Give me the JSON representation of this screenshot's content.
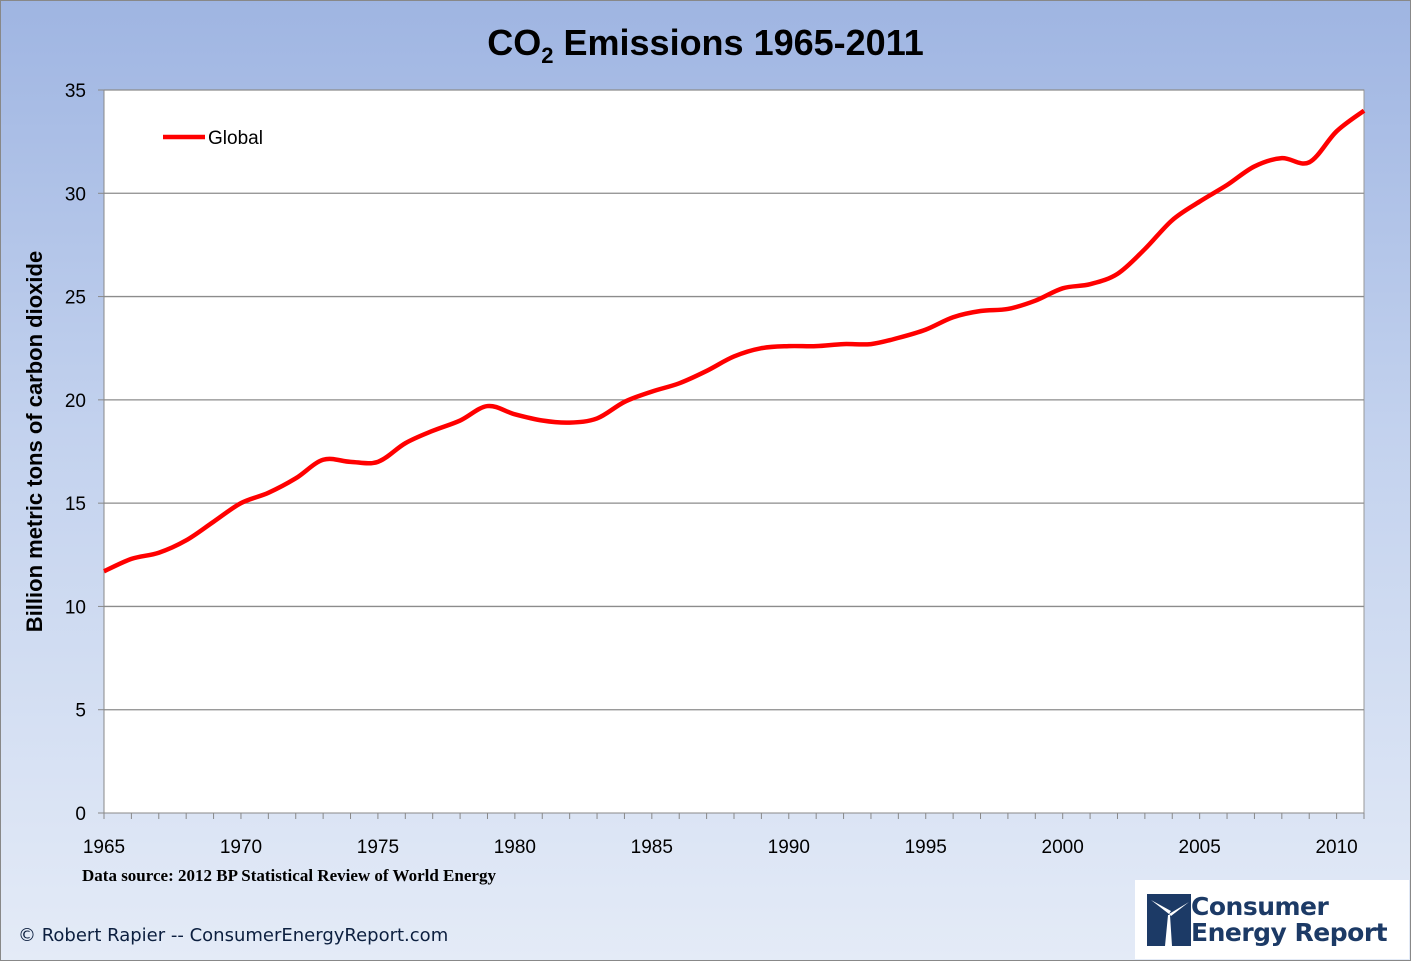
{
  "chart_data": {
    "type": "line",
    "title": "CO",
    "title_subscript": "2",
    "title_rest": " Emissions 1965-2011",
    "ylabel": "Billion metric tons of carbon dioxide",
    "xlabel": "",
    "xlim": [
      1965,
      2011
    ],
    "ylim": [
      0,
      35
    ],
    "xticks": [
      1965,
      1970,
      1975,
      1980,
      1985,
      1990,
      1995,
      2000,
      2005,
      2010
    ],
    "yticks": [
      0,
      5,
      10,
      15,
      20,
      25,
      30,
      35
    ],
    "grid": true,
    "legend_position": "top-left",
    "series": [
      {
        "name": "Global",
        "color": "#ff0000",
        "x": [
          1965,
          1966,
          1967,
          1968,
          1969,
          1970,
          1971,
          1972,
          1973,
          1974,
          1975,
          1976,
          1977,
          1978,
          1979,
          1980,
          1981,
          1982,
          1983,
          1984,
          1985,
          1986,
          1987,
          1988,
          1989,
          1990,
          1991,
          1992,
          1993,
          1994,
          1995,
          1996,
          1997,
          1998,
          1999,
          2000,
          2001,
          2002,
          2003,
          2004,
          2005,
          2006,
          2007,
          2008,
          2009,
          2010,
          2011
        ],
        "values": [
          11.7,
          12.3,
          12.6,
          13.2,
          14.1,
          15.0,
          15.5,
          16.2,
          17.1,
          17.0,
          17.0,
          17.9,
          18.5,
          19.0,
          19.7,
          19.3,
          19.0,
          18.9,
          19.1,
          19.9,
          20.4,
          20.8,
          21.4,
          22.1,
          22.5,
          22.6,
          22.6,
          22.7,
          22.7,
          23.0,
          23.4,
          24.0,
          24.3,
          24.4,
          24.8,
          25.4,
          25.6,
          26.1,
          27.3,
          28.7,
          29.6,
          30.4,
          31.3,
          31.7,
          31.5,
          33.0,
          34.0
        ]
      }
    ]
  },
  "footer": {
    "source": "Data source: 2012 BP Statistical Review of World Energy",
    "credit": "© Robert Rapier -- ConsumerEnergyReport.com",
    "logo_line1": "Consumer",
    "logo_line2": "Energy Report"
  }
}
